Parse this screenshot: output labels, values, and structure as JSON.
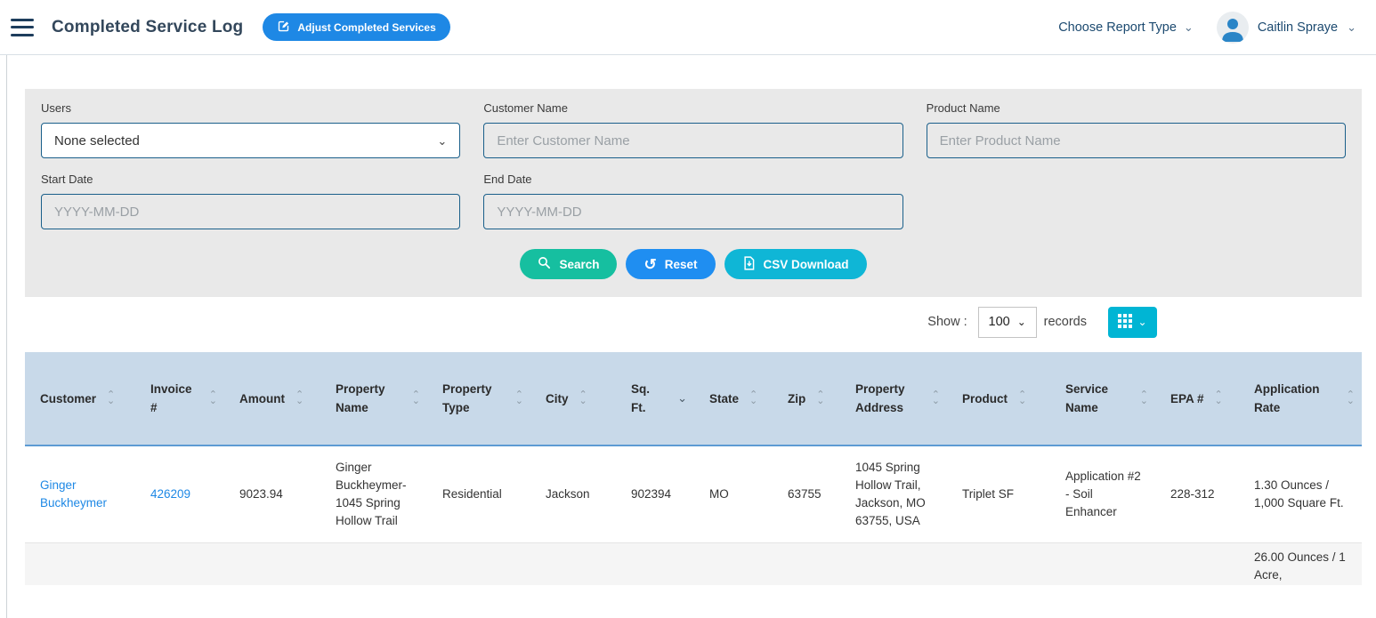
{
  "header": {
    "title": "Completed Service Log",
    "adjust_button_label": "Adjust Completed Services",
    "report_type_label": "Choose Report Type",
    "user_name": "Caitlin Spraye"
  },
  "filters": {
    "users": {
      "label": "Users",
      "value": "None selected"
    },
    "customer_name": {
      "label": "Customer Name",
      "placeholder": "Enter Customer Name"
    },
    "product_name": {
      "label": "Product Name",
      "placeholder": "Enter Product Name"
    },
    "start_date": {
      "label": "Start Date",
      "placeholder": "YYYY-MM-DD"
    },
    "end_date": {
      "label": "End Date",
      "placeholder": "YYYY-MM-DD"
    },
    "buttons": {
      "search": "Search",
      "reset": "Reset",
      "csv": "CSV Download"
    }
  },
  "toolbar": {
    "show_label": "Show :",
    "records_value": "100",
    "records_label": "records"
  },
  "table": {
    "columns": [
      {
        "label": "Customer",
        "sort": "both"
      },
      {
        "label": "Invoice #",
        "sort": "both"
      },
      {
        "label": "Amount",
        "sort": "both"
      },
      {
        "label": "Property Name",
        "sort": "both"
      },
      {
        "label": "Property Type",
        "sort": "both"
      },
      {
        "label": "City",
        "sort": "both"
      },
      {
        "label": "Sq. Ft.",
        "sort": "desc"
      },
      {
        "label": "State",
        "sort": "both"
      },
      {
        "label": "Zip",
        "sort": "both"
      },
      {
        "label": "Property Address",
        "sort": "both"
      },
      {
        "label": "Product",
        "sort": "both"
      },
      {
        "label": "Service Name",
        "sort": "both"
      },
      {
        "label": "EPA #",
        "sort": "both"
      },
      {
        "label": "Application Rate",
        "sort": "both"
      }
    ],
    "link_columns": [
      0,
      1
    ],
    "rows": [
      {
        "cells": [
          "Ginger Buckheymer",
          "426209",
          "9023.94",
          "Ginger Buckheymer-1045 Spring Hollow Trail",
          "Residential",
          "Jackson",
          "902394",
          "MO",
          "63755",
          "1045 Spring Hollow Trail, Jackson, MO 63755, USA",
          "Triplet SF",
          "Application #2 - Soil Enhancer",
          "228-312",
          "1.30 Ounces / 1,000 Square Ft."
        ]
      },
      {
        "cells": [
          "",
          "",
          "",
          "",
          "",
          "",
          "",
          "",
          "",
          "",
          "",
          "",
          "",
          "26.00 Ounces / 1 Acre,"
        ]
      }
    ]
  },
  "colors": {
    "accent_blue": "#1e88e5",
    "search_teal": "#16bfa0",
    "reset_blue": "#1f8ef1",
    "csv_cyan": "#0fb6d6",
    "grid_button_cyan": "#00b5d4",
    "table_header_bg": "#c8d9e9",
    "table_header_border": "#5d9bd3",
    "panel_gray": "#e9e9e9",
    "link_blue": "#1e88e5"
  }
}
